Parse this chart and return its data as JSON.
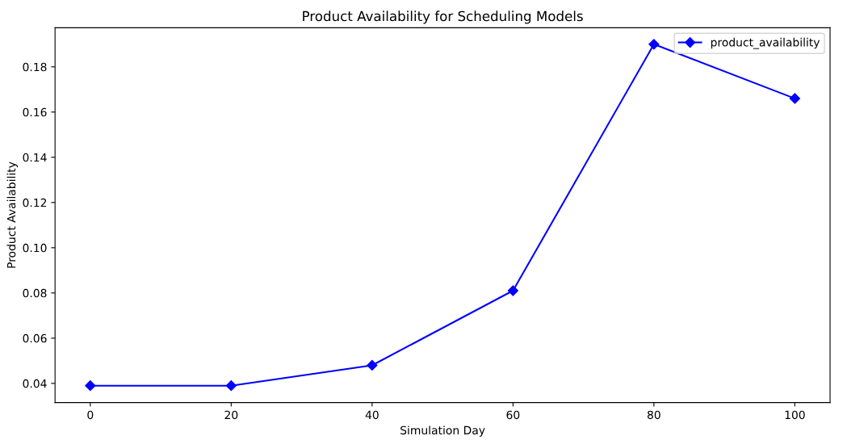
{
  "chart_data": {
    "type": "line",
    "title": "Product Availability for Scheduling Models",
    "xlabel": "Simulation Day",
    "ylabel": "Product Availability",
    "x": [
      0,
      20,
      40,
      60,
      80,
      100
    ],
    "series": [
      {
        "name": "product_availability",
        "color": "#0000ff",
        "values": [
          0.039,
          0.039,
          0.048,
          0.081,
          0.19,
          0.166
        ]
      }
    ],
    "xlim": [
      -5,
      105
    ],
    "xticks": [
      0,
      20,
      40,
      60,
      80,
      100
    ],
    "ylim": [
      0.0315,
      0.1973
    ],
    "yticks": [
      0.04,
      0.06,
      0.08,
      {
        "value": 0.1,
        "label": "0.10"
      },
      0.12,
      0.14,
      0.16,
      0.18
    ],
    "grid": false,
    "legend": "top right",
    "marker": "diamond",
    "line_style": "solid"
  }
}
